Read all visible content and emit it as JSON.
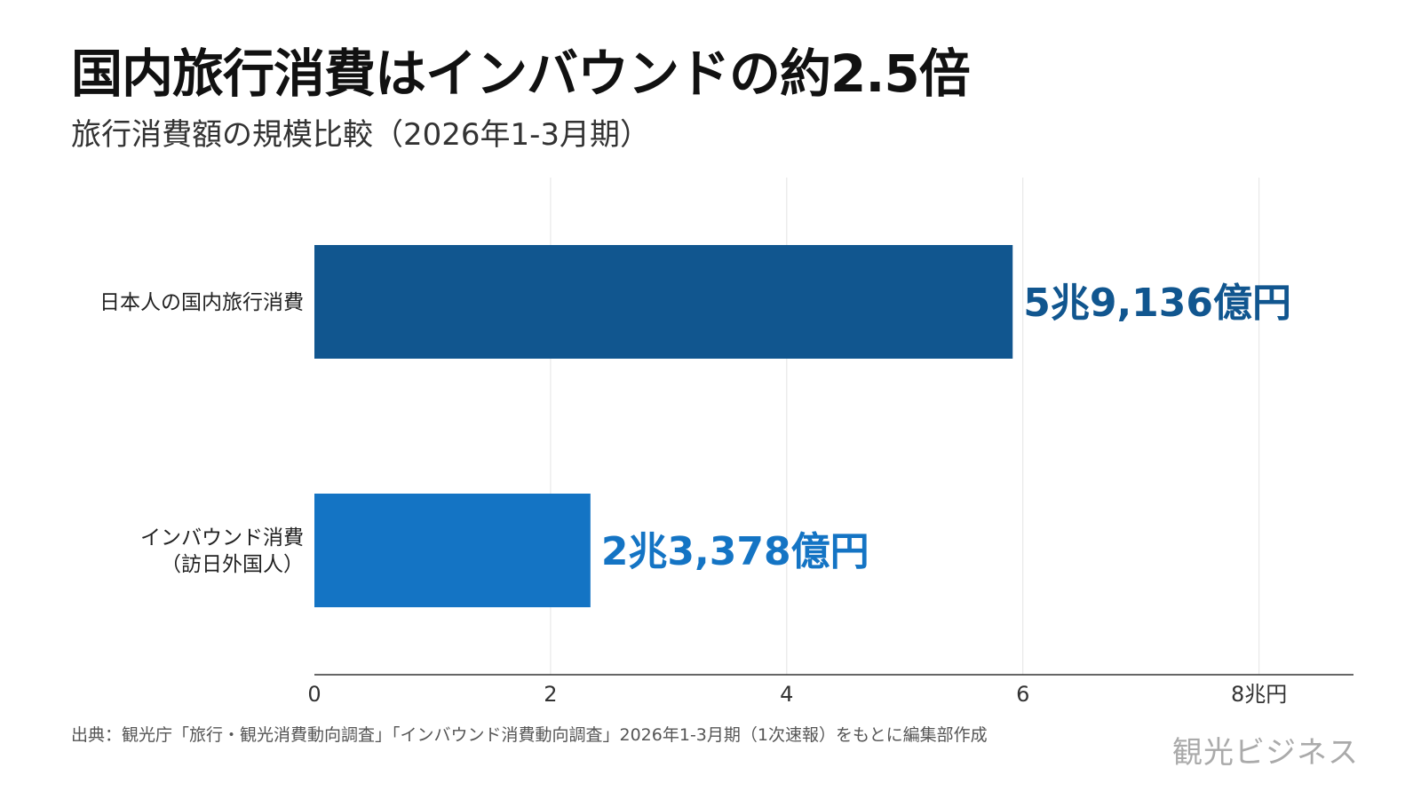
{
  "header": {
    "title": "国内旅行消費はインバウンドの約2.5倍",
    "subtitle": "旅行消費額の規模比較（2026年1-3月期）"
  },
  "chart_data": {
    "type": "bar",
    "orientation": "horizontal",
    "categories": [
      [
        "日本人の国内旅行消費"
      ],
      [
        "インバウンド消費",
        "（訪日外国人）"
      ]
    ],
    "values": [
      5.9136,
      2.3378
    ],
    "value_labels": [
      "5兆9,136億円",
      "2兆3,378億円"
    ],
    "colors": [
      "#11568f",
      "#1474c4"
    ],
    "xlim": [
      0,
      8.8
    ],
    "xticks": [
      0,
      2,
      4,
      6,
      8
    ],
    "xtick_labels": [
      "0",
      "2",
      "4",
      "6",
      "8兆円"
    ],
    "grid": true,
    "legend": "none"
  },
  "footer": {
    "source": "出典：観光庁「旅行・観光消費動向調査」「インバウンド消費動向調査」2026年1-3月期（1次速報）をもとに編集部作成",
    "brand": "観光ビジネス"
  }
}
